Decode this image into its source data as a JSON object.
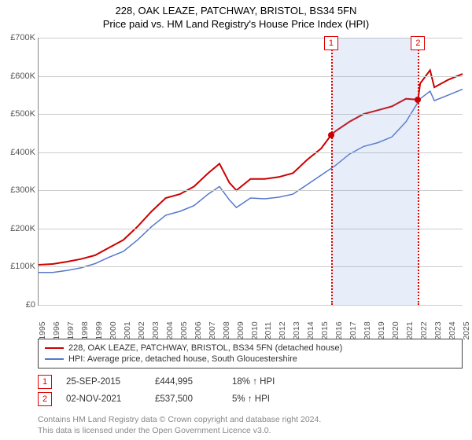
{
  "title_line1": "228, OAK LEAZE, PATCHWAY, BRISTOL, BS34 5FN",
  "title_line2": "Price paid vs. HM Land Registry's House Price Index (HPI)",
  "chart": {
    "type": "line",
    "y_axis": {
      "min": 0,
      "max": 700000,
      "step": 100000,
      "labels": [
        "£0",
        "£100K",
        "£200K",
        "£300K",
        "£400K",
        "£500K",
        "£600K",
        "£700K"
      ]
    },
    "x_axis": {
      "min": 1995,
      "max": 2025,
      "labels": [
        "1995",
        "1996",
        "1997",
        "1998",
        "1999",
        "2000",
        "2001",
        "2002",
        "2003",
        "2004",
        "2005",
        "2006",
        "2007",
        "2008",
        "2009",
        "2010",
        "2011",
        "2012",
        "2013",
        "2014",
        "2015",
        "2016",
        "2017",
        "2018",
        "2019",
        "2020",
        "2021",
        "2022",
        "2023",
        "2024",
        "2025"
      ]
    },
    "background_color": "#ffffff",
    "grid_color": "#cccccc",
    "series": [
      {
        "name": "228, OAK LEAZE, PATCHWAY, BRISTOL, BS34 5FN (detached house)",
        "color": "#cc0000",
        "width": 2,
        "data": [
          [
            1995,
            105000
          ],
          [
            1996,
            107000
          ],
          [
            1997,
            113000
          ],
          [
            1998,
            120000
          ],
          [
            1999,
            130000
          ],
          [
            2000,
            150000
          ],
          [
            2001,
            170000
          ],
          [
            2002,
            205000
          ],
          [
            2003,
            245000
          ],
          [
            2004,
            280000
          ],
          [
            2005,
            290000
          ],
          [
            2006,
            310000
          ],
          [
            2007,
            345000
          ],
          [
            2007.8,
            370000
          ],
          [
            2008.5,
            320000
          ],
          [
            2009,
            300000
          ],
          [
            2010,
            330000
          ],
          [
            2011,
            330000
          ],
          [
            2012,
            335000
          ],
          [
            2013,
            345000
          ],
          [
            2014,
            380000
          ],
          [
            2015,
            410000
          ],
          [
            2015.7,
            444995
          ],
          [
            2016,
            455000
          ],
          [
            2017,
            480000
          ],
          [
            2018,
            500000
          ],
          [
            2019,
            510000
          ],
          [
            2020,
            520000
          ],
          [
            2021,
            540000
          ],
          [
            2021.85,
            537500
          ],
          [
            2022,
            580000
          ],
          [
            2022.7,
            615000
          ],
          [
            2023,
            570000
          ],
          [
            2024,
            590000
          ],
          [
            2025,
            605000
          ]
        ]
      },
      {
        "name": "HPI: Average price, detached house, South Gloucestershire",
        "color": "#5577cc",
        "width": 1.5,
        "data": [
          [
            1995,
            85000
          ],
          [
            1996,
            85000
          ],
          [
            1997,
            90000
          ],
          [
            1998,
            97000
          ],
          [
            1999,
            108000
          ],
          [
            2000,
            125000
          ],
          [
            2001,
            140000
          ],
          [
            2002,
            170000
          ],
          [
            2003,
            205000
          ],
          [
            2004,
            235000
          ],
          [
            2005,
            245000
          ],
          [
            2006,
            260000
          ],
          [
            2007,
            290000
          ],
          [
            2007.8,
            310000
          ],
          [
            2008.5,
            275000
          ],
          [
            2009,
            255000
          ],
          [
            2010,
            280000
          ],
          [
            2011,
            278000
          ],
          [
            2012,
            282000
          ],
          [
            2013,
            290000
          ],
          [
            2014,
            315000
          ],
          [
            2015,
            340000
          ],
          [
            2016,
            365000
          ],
          [
            2017,
            395000
          ],
          [
            2018,
            415000
          ],
          [
            2019,
            425000
          ],
          [
            2020,
            440000
          ],
          [
            2021,
            480000
          ],
          [
            2022,
            540000
          ],
          [
            2022.7,
            560000
          ],
          [
            2023,
            535000
          ],
          [
            2024,
            550000
          ],
          [
            2025,
            565000
          ]
        ]
      }
    ],
    "shaded_regions": [
      {
        "from": 2015.7,
        "to": 2021.85,
        "color": "rgba(120,160,220,0.18)"
      }
    ],
    "markers": [
      {
        "n": "1",
        "year": 2015.7,
        "value": 444995
      },
      {
        "n": "2",
        "year": 2021.85,
        "value": 537500
      }
    ]
  },
  "legend": {
    "items": [
      {
        "color": "#cc0000",
        "label": "228, OAK LEAZE, PATCHWAY, BRISTOL, BS34 5FN (detached house)"
      },
      {
        "color": "#5577cc",
        "label": "HPI: Average price, detached house, South Gloucestershire"
      }
    ]
  },
  "events": [
    {
      "n": "1",
      "date": "25-SEP-2015",
      "price": "£444,995",
      "pct": "18% ↑ HPI"
    },
    {
      "n": "2",
      "date": "02-NOV-2021",
      "price": "£537,500",
      "pct": "5% ↑ HPI"
    }
  ],
  "credits_line1": "Contains HM Land Registry data © Crown copyright and database right 2024.",
  "credits_line2": "This data is licensed under the Open Government Licence v3.0."
}
